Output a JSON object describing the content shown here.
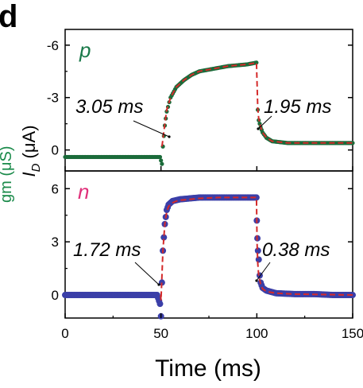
{
  "panel_label": "d",
  "x_axis": {
    "title": "Time (ms)",
    "ticks": [
      "0",
      "50",
      "100",
      "150"
    ]
  },
  "y_axis": {
    "title_main": "I",
    "title_sub": "D",
    "title_unit": " (μA)",
    "left_partial_label": "gm (μS)"
  },
  "colors": {
    "p_marker": "#1b6b3a",
    "p_tag": "#1b7a4a",
    "n_marker": "#3b3fa8",
    "n_tag": "#e0307a",
    "fit": "#d42a2a"
  },
  "chart_data": [
    {
      "type": "scatter",
      "panel": "top",
      "series_tag": "p",
      "xlim": [
        0,
        150
      ],
      "ylim": [
        -6.9,
        1.2
      ],
      "y_inverted": true,
      "y_ticks": [
        "-6",
        "-3",
        "0"
      ],
      "annotations": [
        "3.05 ms",
        "1.95 ms"
      ],
      "series": [
        {
          "name": "p",
          "kind": "markers",
          "x": [
            0,
            10,
            20,
            30,
            40,
            49.5,
            50.5,
            51,
            52,
            53,
            55,
            58,
            62,
            66,
            70,
            75,
            80,
            85,
            90,
            95,
            99.8,
            100.5,
            101,
            102,
            103,
            105,
            108,
            112,
            116,
            120,
            130,
            140,
            150
          ],
          "y": [
            0.4,
            0.4,
            0.4,
            0.4,
            0.4,
            0.4,
            0.8,
            -0.2,
            -1.4,
            -2.2,
            -3.0,
            -3.6,
            -4.0,
            -4.3,
            -4.5,
            -4.6,
            -4.7,
            -4.8,
            -4.85,
            -4.9,
            -5.0,
            -2.3,
            -1.7,
            -1.3,
            -1.0,
            -0.7,
            -0.5,
            -0.45,
            -0.4,
            -0.4,
            -0.4,
            -0.4,
            -0.4
          ]
        },
        {
          "kind": "fit",
          "x": [
            50.5,
            51,
            52,
            53,
            55,
            58,
            62,
            66,
            70,
            75,
            80,
            85,
            90,
            95,
            99.8,
            100.5,
            101,
            102,
            103,
            105,
            108,
            112,
            116,
            120,
            130,
            140,
            150
          ],
          "y": [
            -0.2,
            -0.6,
            -1.5,
            -2.3,
            -3.0,
            -3.6,
            -4.0,
            -4.3,
            -4.5,
            -4.6,
            -4.7,
            -4.8,
            -4.85,
            -4.9,
            -5.0,
            -2.4,
            -1.8,
            -1.3,
            -1.0,
            -0.7,
            -0.5,
            -0.45,
            -0.4,
            -0.4,
            -0.4,
            -0.4,
            -0.4
          ]
        }
      ]
    },
    {
      "type": "scatter",
      "panel": "bottom",
      "series_tag": "n",
      "xlim": [
        0,
        150
      ],
      "ylim": [
        -1.3,
        7.0
      ],
      "y_inverted": false,
      "y_ticks": [
        "6",
        "3",
        "0"
      ],
      "annotations": [
        "1.72 ms",
        "0.38 ms"
      ],
      "series": [
        {
          "name": "n",
          "kind": "markers",
          "x": [
            0,
            10,
            20,
            30,
            40,
            48,
            49.5,
            50,
            50.5,
            51,
            52,
            53,
            54,
            56,
            58,
            60,
            65,
            70,
            75,
            80,
            85,
            90,
            95,
            99.8,
            100,
            100.3,
            100.6,
            101,
            101.5,
            102,
            103,
            105,
            110,
            120,
            130,
            140,
            150
          ],
          "y": [
            0.0,
            0.0,
            0.0,
            0.0,
            0.0,
            0.0,
            -0.5,
            -1.2,
            0.7,
            2.5,
            4.0,
            4.8,
            5.1,
            5.3,
            5.35,
            5.4,
            5.45,
            5.5,
            5.5,
            5.5,
            5.5,
            5.5,
            5.5,
            5.5,
            4.2,
            3.2,
            2.5,
            2.0,
            1.1,
            0.7,
            0.4,
            0.25,
            0.1,
            0.05,
            0.05,
            0.0,
            0.0
          ]
        },
        {
          "kind": "fit",
          "x": [
            49.8,
            50,
            51,
            52,
            53,
            54,
            56,
            58,
            60,
            65,
            70,
            80,
            90,
            99.8,
            100.1,
            100.5,
            101,
            102,
            103,
            105,
            110,
            120,
            150
          ],
          "y": [
            0.0,
            -0.3,
            2.5,
            4.0,
            4.7,
            5.0,
            5.2,
            5.3,
            5.35,
            5.4,
            5.45,
            5.5,
            5.5,
            5.5,
            3.0,
            1.8,
            1.1,
            0.6,
            0.35,
            0.2,
            0.1,
            0.05,
            0.0
          ]
        }
      ]
    }
  ]
}
